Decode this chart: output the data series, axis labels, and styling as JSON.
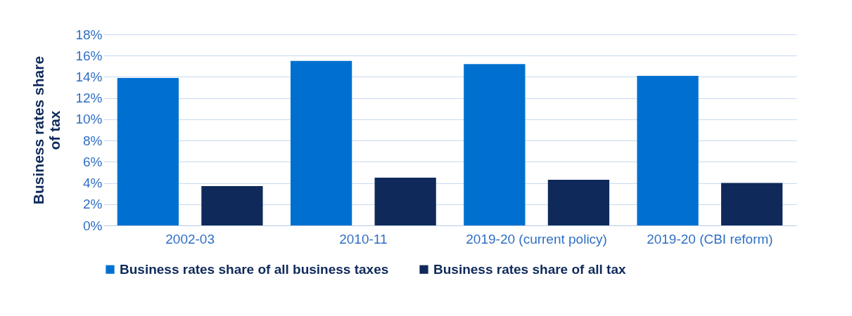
{
  "chart_data": {
    "type": "bar",
    "ylabel": "Business rates share of tax",
    "categories": [
      "2002-03",
      "2010-11",
      "2019-20 (current policy)",
      "2019-20 (CBI reform)"
    ],
    "series": [
      {
        "name": "Business rates share of all business taxes",
        "color": "#0070d0",
        "values": [
          13.9,
          15.5,
          15.2,
          14.1
        ]
      },
      {
        "name": "Business rates share of all tax",
        "color": "#0f2a5a",
        "values": [
          3.7,
          4.5,
          4.3,
          4.0
        ]
      }
    ],
    "ylim": [
      0,
      18
    ],
    "yticks": [
      {
        "value": 0,
        "label": "0%"
      },
      {
        "value": 2,
        "label": "2%"
      },
      {
        "value": 4,
        "label": "4%"
      },
      {
        "value": 6,
        "label": "6%"
      },
      {
        "value": 8,
        "label": "8%"
      },
      {
        "value": 10,
        "label": "10%"
      },
      {
        "value": 12,
        "label": "12%"
      },
      {
        "value": 14,
        "label": "14%"
      },
      {
        "value": 16,
        "label": "16%"
      },
      {
        "value": 18,
        "label": "18%"
      }
    ],
    "grid": "y",
    "legend": "bottom"
  }
}
